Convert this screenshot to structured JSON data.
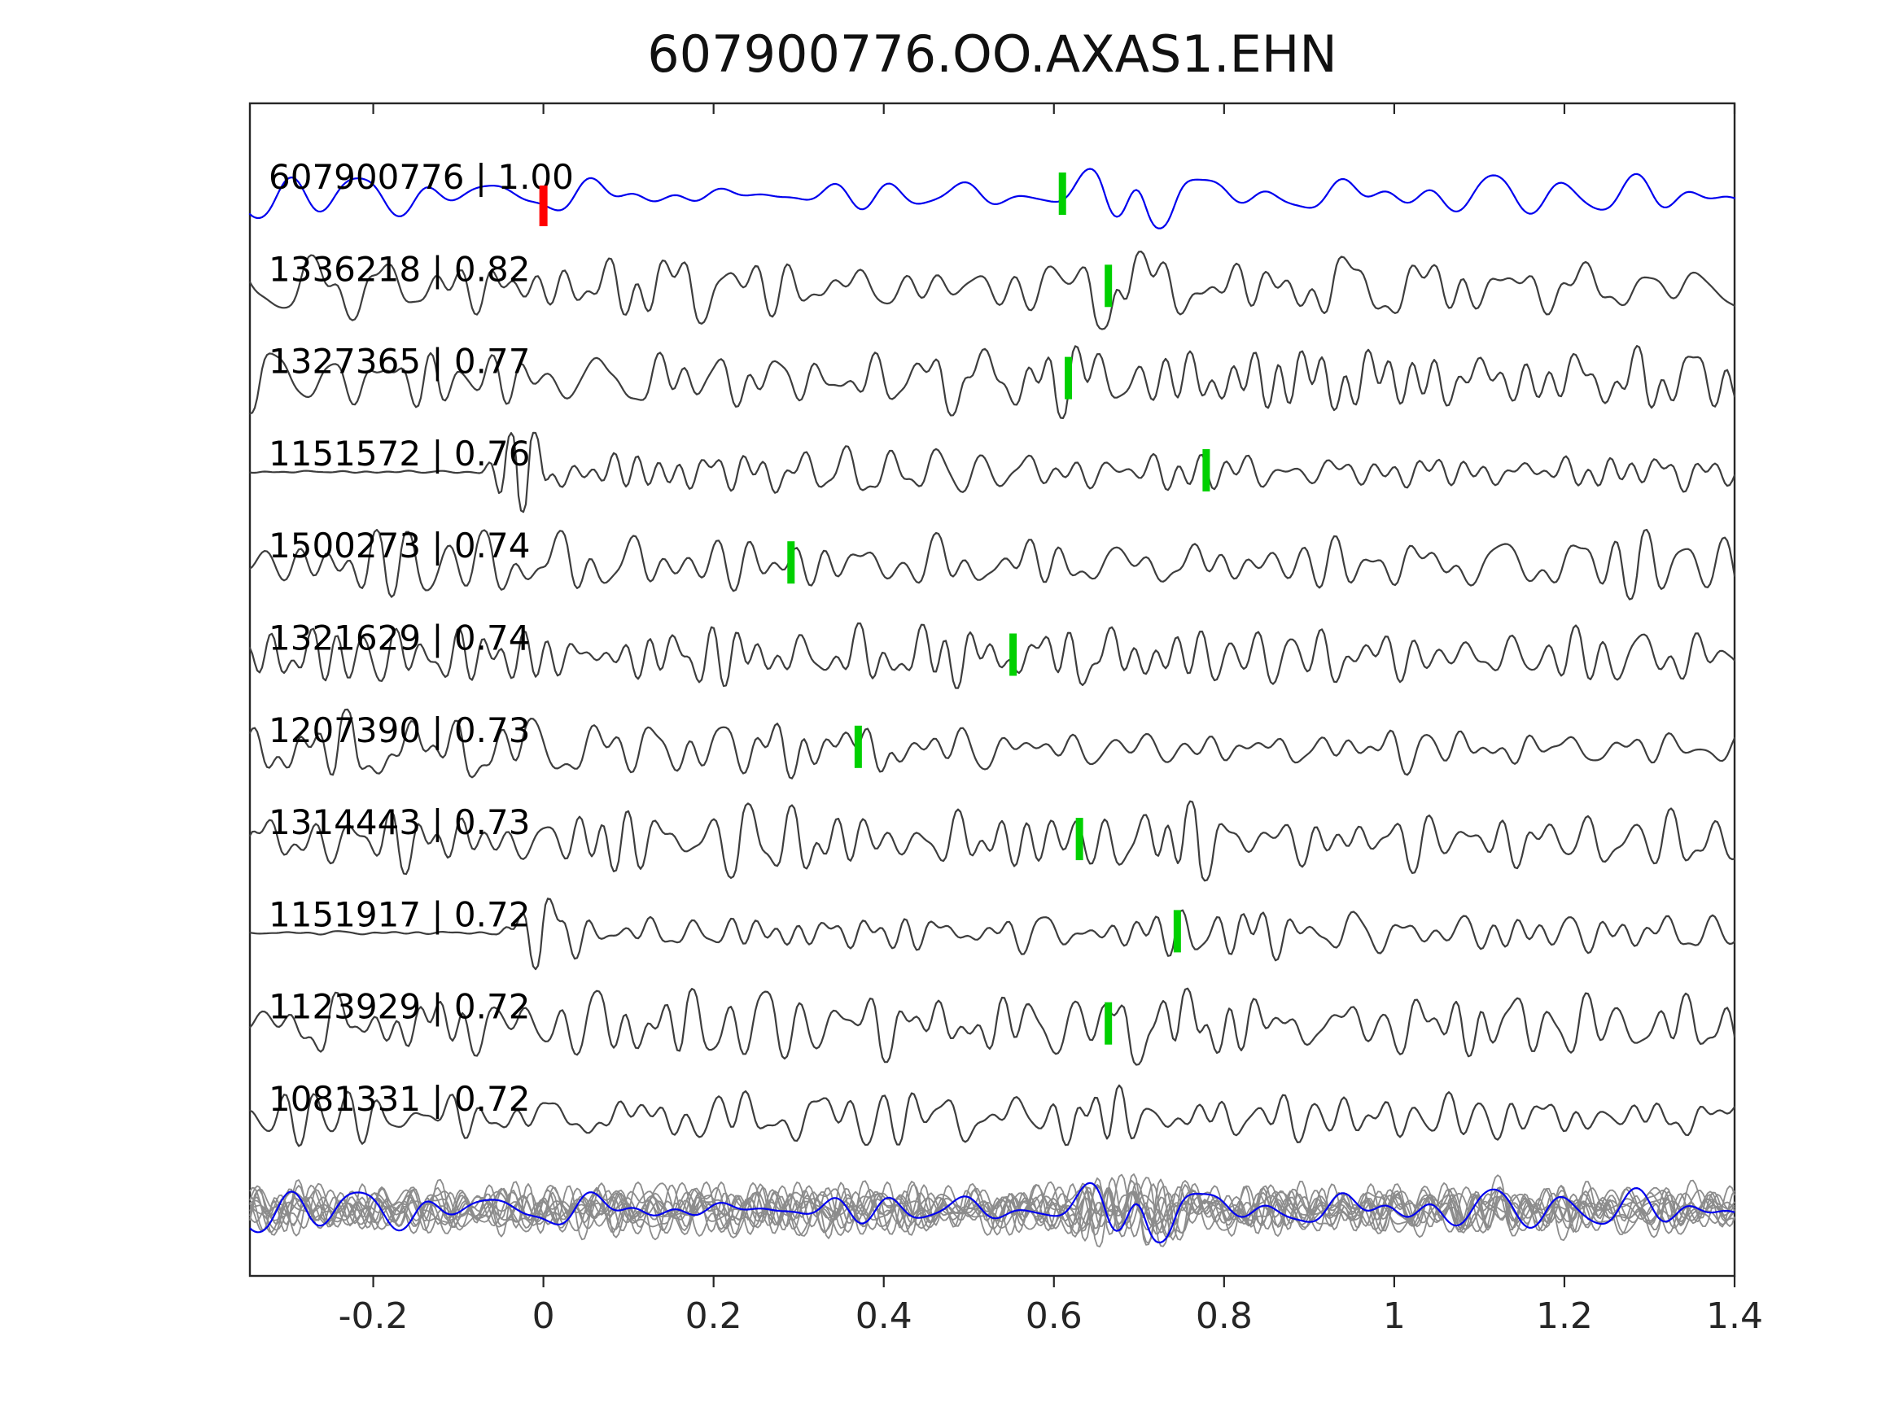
{
  "title": "607900776.OO.AXAS1.EHN",
  "chart_data": {
    "type": "line",
    "title": "607900776.OO.AXAS1.EHN",
    "xlabel": "",
    "ylabel": "",
    "xlim": [
      -0.345,
      1.4
    ],
    "xticks": [
      -0.2,
      0,
      0.2,
      0.4,
      0.6,
      0.8,
      1,
      1.2,
      1.4
    ],
    "xtick_labels": [
      "-0.2",
      "0",
      "0.2",
      "0.4",
      "0.6",
      "0.8",
      "1",
      "1.2",
      "1.4"
    ],
    "grid": false,
    "legend": null,
    "colors": {
      "template_trace": "#0000ee",
      "detection_trace": "#3d3d3d",
      "overlay_trace": "#8c8c8c",
      "pick_marker": "#00d000",
      "template_pick_marker": "#ff0000",
      "axis": "#262626",
      "text": "#000000"
    },
    "traces": [
      {
        "label": "607900776 | 1.00",
        "id": "607900776",
        "correlation": 1.0,
        "role": "template",
        "pick_x": 0.61,
        "template_pick_x": 0.0,
        "amp": 11,
        "seed": 11,
        "smooth": true,
        "bursts": [
          {
            "x": 0.7,
            "w": 0.055,
            "g": 2.0
          },
          {
            "x": 0.86,
            "w": 0.1,
            "g": 0.5
          }
        ]
      },
      {
        "label": "1336218 | 0.82",
        "id": "1336218",
        "correlation": 0.82,
        "role": "detection",
        "pick_x": 0.664,
        "amp": 18,
        "seed": 22,
        "bursts": [
          {
            "x": 0.68,
            "w": 0.045,
            "g": 1.2
          },
          {
            "x": 0.12,
            "w": 0.1,
            "g": 0.5
          }
        ]
      },
      {
        "label": "1327365 | 0.77",
        "id": "1327365",
        "correlation": 0.77,
        "role": "detection",
        "pick_x": 0.617,
        "amp": 20,
        "seed": 33,
        "bursts": [
          {
            "x": 0.62,
            "w": 0.045,
            "g": 1.0
          }
        ]
      },
      {
        "label": "1151572 | 0.76",
        "id": "1151572",
        "correlation": 0.76,
        "role": "detection",
        "pick_x": 0.779,
        "amp": 12,
        "seed": 44,
        "quiet_until": -0.08,
        "bursts": [
          {
            "x": -0.02,
            "w": 0.03,
            "g": 3.2
          }
        ]
      },
      {
        "label": "1500273 | 0.74",
        "id": "1500273",
        "correlation": 0.74,
        "role": "detection",
        "pick_x": 0.291,
        "amp": 19,
        "seed": 55,
        "bursts": [
          {
            "x": 0.55,
            "w": 0.08,
            "g": 0.6
          }
        ]
      },
      {
        "label": "1321629 | 0.74",
        "id": "1321629",
        "correlation": 0.74,
        "role": "detection",
        "pick_x": 0.552,
        "amp": 18,
        "seed": 66,
        "bursts": [
          {
            "x": 0.58,
            "w": 0.05,
            "g": 1.3
          }
        ]
      },
      {
        "label": "1207390 | 0.73",
        "id": "1207390",
        "correlation": 0.73,
        "role": "detection",
        "pick_x": 0.37,
        "amp": 23,
        "seed": 77,
        "damp_after": {
          "x": 0.4,
          "f": 0.42
        }
      },
      {
        "label": "1314443 | 0.73",
        "id": "1314443",
        "correlation": 0.73,
        "role": "detection",
        "pick_x": 0.63,
        "amp": 19,
        "seed": 88,
        "bursts": [
          {
            "x": 0.72,
            "w": 0.06,
            "g": 0.9
          }
        ]
      },
      {
        "label": "1151917 | 0.72",
        "id": "1151917",
        "correlation": 0.72,
        "role": "detection",
        "pick_x": 0.745,
        "amp": 11,
        "seed": 99,
        "quiet_until": -0.06,
        "bursts": [
          {
            "x": 0.01,
            "w": 0.035,
            "g": 3.0
          },
          {
            "x": 0.78,
            "w": 0.07,
            "g": 0.8
          }
        ]
      },
      {
        "label": "1123929 | 0.72",
        "id": "1123929",
        "correlation": 0.72,
        "role": "detection",
        "pick_x": 0.664,
        "amp": 19,
        "seed": 111,
        "bursts": [
          {
            "x": 0.72,
            "w": 0.05,
            "g": 1.4
          }
        ]
      },
      {
        "label": "1081331 | 0.72",
        "id": "1081331",
        "correlation": 0.72,
        "role": "detection",
        "pick_x": null,
        "amp": 15,
        "seed": 122,
        "bursts": [
          {
            "x": 0.66,
            "w": 0.05,
            "g": 1.6
          }
        ]
      }
    ],
    "overlay_row": {
      "description": "all aligned detections overlaid in gray with blue template on top",
      "n_gray": 11,
      "gray_amp": 15,
      "blue_amp": 11,
      "common_burst": {
        "x": 0.7,
        "w": 0.07,
        "g": 0.6
      },
      "extra_seed": 133
    }
  }
}
